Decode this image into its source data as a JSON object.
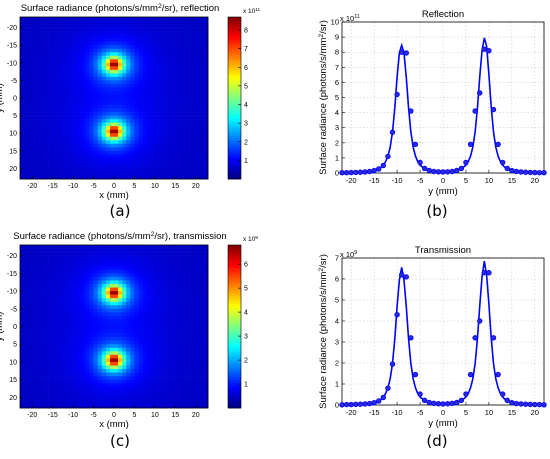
{
  "captions": [
    "(a)",
    "(b)",
    "(c)",
    "(d)"
  ],
  "colors": {
    "line": "#0000ff",
    "axis": "#000000",
    "grid": "#c0c0c0"
  },
  "chart_data": [
    {
      "type": "heatmap",
      "title": "Surface radiance (photons/s/mm²/sr), reflection",
      "xlabel": "x (mm)",
      "ylabel": "y (mm)",
      "xlim": [
        -23,
        23
      ],
      "ylim": [
        -23,
        23
      ],
      "y_reversed": true,
      "x_ticks": [
        -20,
        -15,
        -10,
        -5,
        0,
        5,
        10,
        15,
        20
      ],
      "y_ticks": [
        -20,
        -15,
        -10,
        -5,
        0,
        5,
        10,
        15,
        20
      ],
      "sources": [
        {
          "x": 0,
          "y": -9.5
        },
        {
          "x": 0,
          "y": 9.5
        }
      ],
      "colorbar": {
        "ticks": [
          1,
          2,
          3,
          4,
          5,
          6,
          7,
          8
        ],
        "max": 8.7,
        "scale_label": "x 10¹¹",
        "colormap": "jet"
      }
    },
    {
      "type": "line",
      "title": "Reflection",
      "xlabel": "y (mm)",
      "ylabel": "Surface radiance (photons/s/mm²/sr)",
      "xlim": [
        -22,
        22
      ],
      "ylim": [
        0,
        10
      ],
      "x_ticks": [
        -20,
        -15,
        -10,
        -5,
        0,
        5,
        10,
        15,
        20
      ],
      "y_ticks": [
        0,
        1,
        2,
        3,
        4,
        5,
        6,
        7,
        8,
        9,
        10
      ],
      "y_scale_label": "x 10¹¹",
      "grid": true,
      "series": [
        {
          "style": "line",
          "x": [
            -22,
            -21,
            -20,
            -19,
            -18,
            -17,
            -16,
            -15,
            -14,
            -13.5,
            -13,
            -12.5,
            -12,
            -11.5,
            -11,
            -10.5,
            -10,
            -9.5,
            -9,
            -8.5,
            -8,
            -7.5,
            -7,
            -6.5,
            -6,
            -5.5,
            -5,
            -4,
            -3,
            -2,
            -1,
            0,
            1,
            2,
            3,
            4,
            5,
            5.5,
            6,
            6.5,
            7,
            7.5,
            8,
            8.5,
            9,
            9.5,
            10,
            10.5,
            11,
            11.5,
            12,
            12.5,
            13,
            13.5,
            14,
            15,
            16,
            17,
            18,
            19,
            20,
            21,
            22
          ],
          "y": [
            0.02,
            0.02,
            0.03,
            0.04,
            0.05,
            0.07,
            0.11,
            0.17,
            0.28,
            0.37,
            0.52,
            0.75,
            1.12,
            1.72,
            2.72,
            4.3,
            6.35,
            7.95,
            8.45,
            7.95,
            6.35,
            4.3,
            2.72,
            1.72,
            1.12,
            0.75,
            0.52,
            0.28,
            0.17,
            0.11,
            0.08,
            0.07,
            0.08,
            0.11,
            0.17,
            0.28,
            0.52,
            0.75,
            1.12,
            1.72,
            2.72,
            4.3,
            6.35,
            8.1,
            8.95,
            8.4,
            6.5,
            4.4,
            2.72,
            1.72,
            1.12,
            0.75,
            0.52,
            0.37,
            0.28,
            0.17,
            0.11,
            0.07,
            0.05,
            0.04,
            0.03,
            0.02,
            0.02
          ]
        },
        {
          "style": "markers",
          "x": [
            -22,
            -21,
            -20,
            -19,
            -18,
            -17,
            -16,
            -15,
            -14,
            -13,
            -12,
            -11,
            -10,
            -9,
            -8,
            -7,
            -6,
            -5,
            -4,
            -3,
            -2,
            -1,
            0,
            1,
            2,
            3,
            4,
            5,
            6,
            7,
            8,
            9,
            10,
            11,
            12,
            13,
            14,
            15,
            16,
            17,
            18,
            19,
            20,
            21,
            22
          ],
          "y": [
            0.02,
            0.02,
            0.03,
            0.04,
            0.05,
            0.07,
            0.1,
            0.16,
            0.27,
            0.5,
            1.1,
            2.7,
            5.2,
            8.0,
            7.95,
            4.1,
            1.9,
            0.7,
            0.3,
            0.17,
            0.1,
            0.08,
            0.07,
            0.08,
            0.1,
            0.17,
            0.3,
            0.7,
            1.9,
            4.1,
            5.3,
            8.2,
            8.1,
            4.2,
            1.9,
            0.7,
            0.3,
            0.16,
            0.1,
            0.07,
            0.05,
            0.04,
            0.03,
            0.02,
            0.02
          ]
        }
      ]
    },
    {
      "type": "heatmap",
      "title": "Surface radiance (photons/s/mm²/sr), transmission",
      "xlabel": "x (mm)",
      "ylabel": "y (mm)",
      "xlim": [
        -23,
        23
      ],
      "ylim": [
        -23,
        23
      ],
      "y_reversed": true,
      "x_ticks": [
        -20,
        -15,
        -10,
        -5,
        0,
        5,
        10,
        15,
        20
      ],
      "y_ticks": [
        -20,
        -15,
        -10,
        -5,
        0,
        5,
        10,
        15,
        20
      ],
      "sources": [
        {
          "x": 0,
          "y": -9.5
        },
        {
          "x": 0,
          "y": 9.5
        }
      ],
      "colorbar": {
        "ticks": [
          1,
          2,
          3,
          4,
          5,
          6
        ],
        "max": 6.8,
        "scale_label": "x 10⁹",
        "colormap": "jet"
      }
    },
    {
      "type": "line",
      "title": "Transmission",
      "xlabel": "y (mm)",
      "ylabel": "Surface radiance (photons/s/mm²/sr)",
      "xlim": [
        -22,
        22
      ],
      "ylim": [
        0,
        7
      ],
      "x_ticks": [
        -20,
        -15,
        -10,
        -5,
        0,
        5,
        10,
        15,
        20
      ],
      "y_ticks": [
        0,
        1,
        2,
        3,
        4,
        5,
        6,
        7
      ],
      "y_scale_label": "x 10⁹",
      "grid": true,
      "series": [
        {
          "style": "line",
          "x": [
            -22,
            -21,
            -20,
            -19,
            -18,
            -17,
            -16,
            -15,
            -14,
            -13.5,
            -13,
            -12.5,
            -12,
            -11.5,
            -11,
            -10.5,
            -10,
            -9.5,
            -9,
            -8.5,
            -8,
            -7.5,
            -7,
            -6.5,
            -6,
            -5.5,
            -5,
            -4,
            -3,
            -2,
            -1,
            0,
            1,
            2,
            3,
            4,
            5,
            5.5,
            6,
            6.5,
            7,
            7.5,
            8,
            8.5,
            9,
            9.5,
            10,
            10.5,
            11,
            11.5,
            12,
            12.5,
            13,
            13.5,
            14,
            15,
            16,
            17,
            18,
            19,
            20,
            21,
            22
          ],
          "y": [
            0.01,
            0.02,
            0.02,
            0.03,
            0.04,
            0.05,
            0.08,
            0.12,
            0.2,
            0.27,
            0.38,
            0.55,
            0.82,
            1.25,
            1.98,
            3.15,
            4.7,
            5.95,
            6.55,
            5.95,
            4.7,
            3.15,
            1.98,
            1.25,
            0.82,
            0.55,
            0.38,
            0.2,
            0.12,
            0.08,
            0.06,
            0.05,
            0.06,
            0.08,
            0.12,
            0.2,
            0.38,
            0.55,
            0.82,
            1.25,
            1.98,
            3.15,
            4.7,
            6.1,
            6.85,
            6.2,
            4.8,
            3.2,
            1.98,
            1.25,
            0.82,
            0.55,
            0.38,
            0.27,
            0.2,
            0.12,
            0.08,
            0.05,
            0.04,
            0.03,
            0.02,
            0.02,
            0.01
          ]
        },
        {
          "style": "markers",
          "x": [
            -22,
            -21,
            -20,
            -19,
            -18,
            -17,
            -16,
            -15,
            -14,
            -13,
            -12,
            -11,
            -10,
            -9,
            -8,
            -7,
            -6,
            -5,
            -4,
            -3,
            -2,
            -1,
            0,
            1,
            2,
            3,
            4,
            5,
            6,
            7,
            8,
            9,
            10,
            11,
            12,
            13,
            14,
            15,
            16,
            17,
            18,
            19,
            20,
            21,
            22
          ],
          "y": [
            0.01,
            0.02,
            0.02,
            0.03,
            0.04,
            0.05,
            0.07,
            0.11,
            0.19,
            0.36,
            0.8,
            1.95,
            4.3,
            6.2,
            6.1,
            3.2,
            1.45,
            0.52,
            0.22,
            0.12,
            0.08,
            0.06,
            0.05,
            0.06,
            0.08,
            0.12,
            0.22,
            0.52,
            1.45,
            3.2,
            4.0,
            6.3,
            6.3,
            3.2,
            1.45,
            0.52,
            0.22,
            0.11,
            0.07,
            0.05,
            0.04,
            0.03,
            0.02,
            0.02,
            0.01
          ]
        }
      ]
    }
  ]
}
